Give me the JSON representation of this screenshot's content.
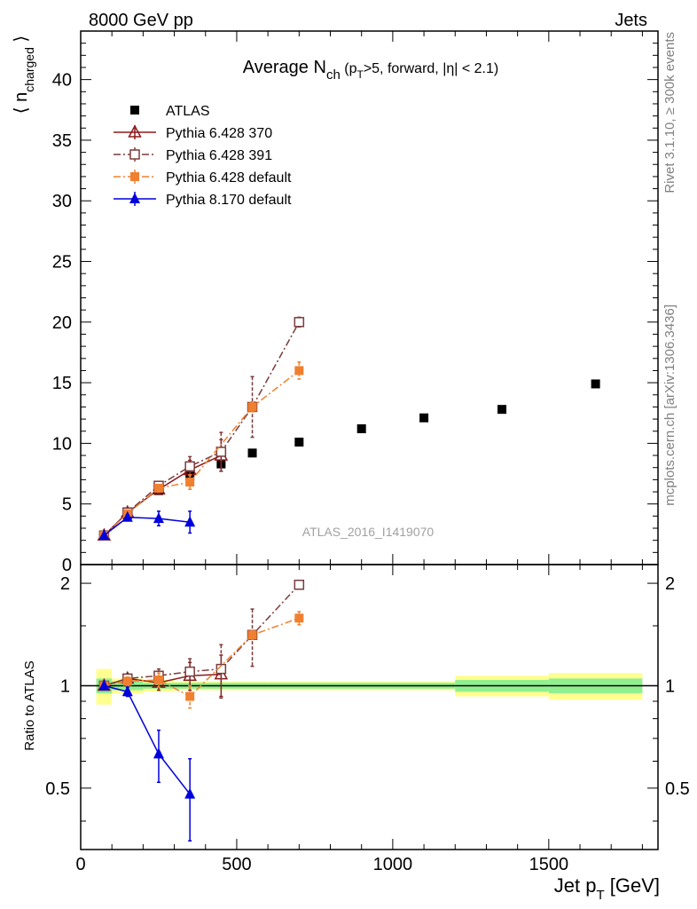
{
  "header": {
    "left": "8000 GeV pp",
    "right": "Jets"
  },
  "side_labels": {
    "rivet": "Rivet 3.1.10, ≥ 300k events",
    "mcplots": "mcplots.cern.ch [arXiv:1306.3436]"
  },
  "watermark": "ATLAS_2016_I1419070",
  "chart_data": [
    {
      "type": "scatter",
      "title": "Average N_ch (p_T>5, forward, |η| < 2.1)",
      "ylabel": "⟨ n_charged ⟩",
      "xlabel": "Jet p_T [GeV]",
      "xlim": [
        0,
        1850
      ],
      "ylim": [
        0,
        44
      ],
      "x_ticks": [
        0,
        500,
        1000,
        1500
      ],
      "y_ticks": [
        0,
        5,
        10,
        15,
        20,
        25,
        30,
        35,
        40
      ],
      "legend_position": "top-left",
      "series": [
        {
          "name": "ATLAS",
          "color": "#000000",
          "marker": "filled-square",
          "line": "none",
          "x": [
            75,
            150,
            250,
            350,
            450,
            550,
            700,
            900,
            1100,
            1350,
            1650
          ],
          "y": [
            2.4,
            4.1,
            6.1,
            7.3,
            8.3,
            9.2,
            10.1,
            11.2,
            12.1,
            12.8,
            14.9
          ]
        },
        {
          "name": "Pythia 6.428 370",
          "color": "#8b1a1a",
          "marker": "open-triangle",
          "line": "solid",
          "x": [
            75,
            150,
            250,
            350,
            450
          ],
          "y": [
            2.4,
            4.3,
            6.2,
            7.8,
            9.0
          ],
          "err": [
            0.1,
            0.2,
            0.3,
            0.8,
            1.3
          ]
        },
        {
          "name": "Pythia 6.428 391",
          "color": "#7a3b3b",
          "marker": "open-square",
          "line": "dashdot",
          "x": [
            75,
            150,
            250,
            350,
            450,
            550,
            700
          ],
          "y": [
            2.4,
            4.3,
            6.5,
            8.1,
            9.3,
            13.0,
            20.0
          ],
          "err": [
            0.1,
            0.2,
            0.3,
            0.8,
            1.6,
            2.5,
            0.4
          ]
        },
        {
          "name": "Pythia 6.428 default",
          "color": "#f08030",
          "marker": "filled-square",
          "line": "dashdot",
          "x": [
            75,
            150,
            250,
            350,
            550,
            700
          ],
          "y": [
            2.4,
            4.2,
            6.3,
            6.8,
            13.0,
            16.0
          ],
          "err": [
            0.1,
            0.2,
            0.3,
            0.6,
            0.4,
            0.7
          ]
        },
        {
          "name": "Pythia 8.170 default",
          "color": "#0000dd",
          "marker": "filled-triangle",
          "line": "solid",
          "x": [
            75,
            150,
            250,
            350
          ],
          "y": [
            2.4,
            3.9,
            3.8,
            3.5
          ],
          "err": [
            0.1,
            0.2,
            0.6,
            0.9
          ]
        }
      ]
    },
    {
      "type": "line",
      "ylabel": "Ratio to ATLAS",
      "xlabel": "Jet p_T [GeV]",
      "xlim": [
        0,
        1850
      ],
      "ylim": [
        0.33,
        2.27
      ],
      "x_ticks": [
        0,
        500,
        1000,
        1500
      ],
      "y_ticks": [
        0.5,
        1,
        2
      ],
      "reference_line": 1,
      "uncertainty_bands": [
        {
          "x0": 50,
          "x1": 100,
          "stat": [
            0.95,
            1.05
          ],
          "total": [
            0.88,
            1.12
          ]
        },
        {
          "x0": 100,
          "x1": 200,
          "stat": [
            0.97,
            1.03
          ],
          "total": [
            0.95,
            1.05
          ]
        },
        {
          "x0": 200,
          "x1": 300,
          "stat": [
            0.98,
            1.02
          ],
          "total": [
            0.96,
            1.04
          ]
        },
        {
          "x0": 300,
          "x1": 400,
          "stat": [
            0.98,
            1.02
          ],
          "total": [
            0.97,
            1.03
          ]
        },
        {
          "x0": 400,
          "x1": 500,
          "stat": [
            0.98,
            1.02
          ],
          "total": [
            0.97,
            1.03
          ]
        },
        {
          "x0": 500,
          "x1": 600,
          "stat": [
            0.98,
            1.02
          ],
          "total": [
            0.97,
            1.03
          ]
        },
        {
          "x0": 600,
          "x1": 800,
          "stat": [
            0.98,
            1.02
          ],
          "total": [
            0.97,
            1.03
          ]
        },
        {
          "x0": 800,
          "x1": 1000,
          "stat": [
            0.98,
            1.02
          ],
          "total": [
            0.97,
            1.03
          ]
        },
        {
          "x0": 1000,
          "x1": 1200,
          "stat": [
            0.98,
            1.02
          ],
          "total": [
            0.97,
            1.03
          ]
        },
        {
          "x0": 1200,
          "x1": 1500,
          "stat": [
            0.96,
            1.04
          ],
          "total": [
            0.93,
            1.07
          ]
        },
        {
          "x0": 1500,
          "x1": 1800,
          "stat": [
            0.95,
            1.05
          ],
          "total": [
            0.91,
            1.09
          ]
        }
      ],
      "band_colors": {
        "stat": "#90f090",
        "total": "#ffff90"
      },
      "series": [
        {
          "name": "Pythia 6.428 370",
          "color": "#8b1a1a",
          "marker": "open-triangle",
          "line": "solid",
          "x": [
            75,
            150,
            250,
            350,
            450
          ],
          "y": [
            1.0,
            1.05,
            1.02,
            1.07,
            1.08
          ],
          "err": [
            0.02,
            0.03,
            0.05,
            0.1,
            0.15
          ]
        },
        {
          "name": "Pythia 6.428 391",
          "color": "#7a3b3b",
          "marker": "open-square",
          "line": "dashdot",
          "x": [
            75,
            150,
            250,
            350,
            450,
            550,
            700
          ],
          "y": [
            1.0,
            1.05,
            1.07,
            1.1,
            1.12,
            1.41,
            1.98
          ],
          "err": [
            0.02,
            0.03,
            0.05,
            0.1,
            0.2,
            0.27,
            0.04
          ]
        },
        {
          "name": "Pythia 6.428 default",
          "color": "#f08030",
          "marker": "filled-square",
          "line": "dashdot",
          "x": [
            75,
            150,
            250,
            350,
            550,
            700
          ],
          "y": [
            1.0,
            1.03,
            1.04,
            0.93,
            1.41,
            1.58
          ],
          "err": [
            0.02,
            0.03,
            0.05,
            0.07,
            0.04,
            0.07
          ]
        },
        {
          "name": "Pythia 8.170 default",
          "color": "#0000dd",
          "marker": "filled-triangle",
          "line": "solid",
          "x": [
            75,
            150,
            250,
            350
          ],
          "y": [
            1.0,
            0.96,
            0.63,
            0.48
          ],
          "err": [
            0.02,
            0.03,
            0.11,
            0.13
          ]
        }
      ]
    }
  ]
}
